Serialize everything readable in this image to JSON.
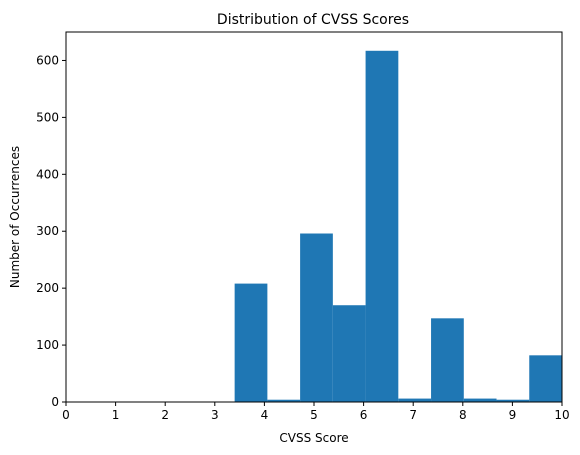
{
  "chart_data": {
    "type": "bar",
    "title": "Distribution of CVSS Scores",
    "xlabel": "CVSS Score",
    "ylabel": "Number of Occurrences",
    "xlim": [
      0,
      10
    ],
    "ylim": [
      0,
      650
    ],
    "grid": false,
    "legend": "none",
    "bar_color": "#1f77b4",
    "bins": [
      {
        "x0": 3.4,
        "x1": 4.06,
        "value": 208
      },
      {
        "x0": 4.06,
        "x1": 4.72,
        "value": 4
      },
      {
        "x0": 4.72,
        "x1": 5.38,
        "value": 296
      },
      {
        "x0": 5.38,
        "x1": 6.04,
        "value": 170
      },
      {
        "x0": 6.04,
        "x1": 6.7,
        "value": 617
      },
      {
        "x0": 6.7,
        "x1": 7.36,
        "value": 6
      },
      {
        "x0": 7.36,
        "x1": 8.02,
        "value": 147
      },
      {
        "x0": 8.02,
        "x1": 8.68,
        "value": 6
      },
      {
        "x0": 8.68,
        "x1": 9.34,
        "value": 4
      },
      {
        "x0": 9.34,
        "x1": 10.0,
        "value": 82
      }
    ],
    "x_ticks": [
      "0",
      "1",
      "2",
      "3",
      "4",
      "5",
      "6",
      "7",
      "8",
      "9",
      "10"
    ],
    "y_ticks": [
      "0",
      "100",
      "200",
      "300",
      "400",
      "500",
      "600"
    ]
  }
}
